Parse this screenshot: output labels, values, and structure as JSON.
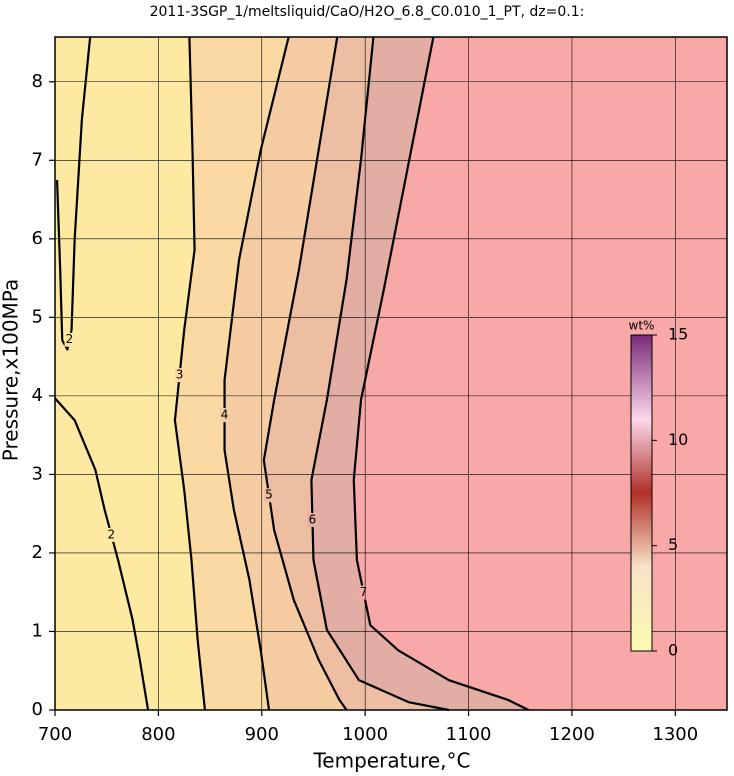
{
  "chart_data": {
    "type": "contour",
    "title": "2011-3SGP_1/meltsliquid/CaO/H2O_6.8_C0.010_1_PT, dz=0.1:",
    "x_label": "Temperature,°C",
    "y_label": "Pressure,x100MPa",
    "xlim": [
      700,
      1350
    ],
    "ylim": [
      0,
      8.57
    ],
    "xticks": [
      700,
      800,
      900,
      1000,
      1100,
      1200,
      1300
    ],
    "yticks": [
      0,
      1,
      2,
      3,
      4,
      5,
      6,
      7,
      8
    ],
    "grid": true,
    "background": "#fde9a2",
    "contours": [
      {
        "level": 2,
        "x": [
          734,
          726,
          719,
          716,
          712,
          707,
          705,
          702
        ],
        "y": [
          8.57,
          7.52,
          5.99,
          4.84,
          4.59,
          4.71,
          5.61,
          6.75
        ]
      },
      {
        "level": 2,
        "x": [
          700,
          719,
          739,
          748,
          761,
          775,
          782,
          790
        ],
        "y": [
          3.97,
          3.69,
          3.06,
          2.55,
          1.91,
          1.15,
          0.64,
          0
        ]
      },
      {
        "level": 3,
        "color": "#fbd9a2",
        "x": [
          830,
          833,
          835,
          825,
          816,
          825,
          832,
          838,
          845
        ],
        "y": [
          8.57,
          7.13,
          5.86,
          4.84,
          3.69,
          2.8,
          1.91,
          0.89,
          0
        ]
      },
      {
        "level": 4,
        "color": "#f6cca2",
        "x": [
          926,
          899,
          878,
          864,
          864,
          873,
          888,
          899,
          907
        ],
        "y": [
          8.57,
          7.13,
          5.73,
          4.2,
          3.31,
          2.55,
          1.66,
          0.76,
          0
        ]
      },
      {
        "level": 5,
        "color": "#eebea2",
        "x": [
          973,
          955,
          936,
          912,
          902,
          912,
          931,
          955,
          975,
          982
        ],
        "y": [
          8.57,
          7.13,
          5.61,
          3.95,
          3.18,
          2.29,
          1.4,
          0.64,
          0.13,
          0
        ]
      },
      {
        "level": 6,
        "color": "#e2ada3",
        "x": [
          1008,
          996,
          982,
          963,
          948,
          950,
          963,
          994,
          1042,
          1081
        ],
        "y": [
          8.57,
          7.01,
          5.48,
          3.95,
          2.93,
          1.91,
          1.02,
          0.38,
          0.1,
          0
        ]
      },
      {
        "level": 7,
        "color": "#f9a8a8",
        "x": [
          1066,
          1018,
          996,
          989,
          992,
          1005,
          1032,
          1081,
          1138,
          1158
        ],
        "y": [
          8.57,
          5.35,
          3.95,
          2.93,
          1.91,
          1.08,
          0.76,
          0.38,
          0.13,
          0
        ]
      }
    ],
    "colorbar": {
      "label": "wt%",
      "lim": [
        0,
        15
      ],
      "ticks": [
        0,
        5,
        10,
        15
      ],
      "stops": [
        [
          0,
          "#fbfab0"
        ],
        [
          4,
          "#f9e2c8"
        ],
        [
          7.5,
          "#b03028"
        ],
        [
          11,
          "#fcd8ea"
        ],
        [
          15,
          "#7a2a78"
        ]
      ]
    }
  }
}
